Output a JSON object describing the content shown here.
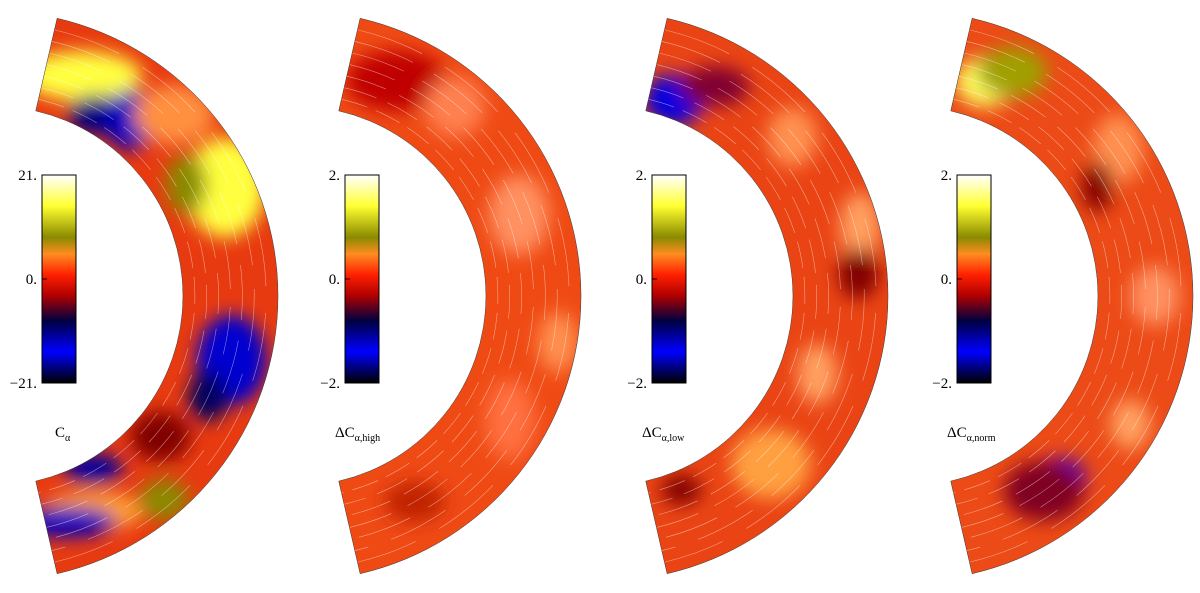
{
  "panels": [
    {
      "label": {
        "symbol": "C",
        "sub": "α"
      },
      "colorbar": {
        "ticks": [
          {
            "value": 21,
            "label": "21."
          },
          {
            "value": 0,
            "label": "0."
          },
          {
            "value": -21,
            "label": "−21."
          }
        ]
      }
    },
    {
      "label": {
        "symbol": "ΔC",
        "sub": "α,high"
      },
      "colorbar": {
        "ticks": [
          {
            "value": 2,
            "label": "2."
          },
          {
            "value": 0,
            "label": "0."
          },
          {
            "value": -2,
            "label": "−2."
          }
        ]
      }
    },
    {
      "label": {
        "symbol": "ΔC",
        "sub": "α,low"
      },
      "colorbar": {
        "ticks": [
          {
            "value": 2,
            "label": "2."
          },
          {
            "value": 0,
            "label": "0."
          },
          {
            "value": -2,
            "label": "−2."
          }
        ]
      }
    },
    {
      "label": {
        "symbol": "ΔC",
        "sub": "α,norm"
      },
      "colorbar": {
        "ticks": [
          {
            "value": 2,
            "label": "2."
          },
          {
            "value": 0,
            "label": "0."
          },
          {
            "value": -2,
            "label": "−2."
          }
        ]
      }
    }
  ]
}
